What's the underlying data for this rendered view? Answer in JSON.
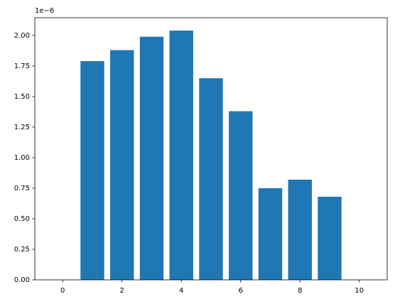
{
  "chart_data": {
    "type": "bar",
    "x": [
      0,
      1,
      2,
      3,
      4,
      5,
      6,
      7,
      8,
      9,
      10
    ],
    "values": [
      0,
      1.79,
      1.88,
      1.99,
      2.04,
      1.65,
      1.38,
      0.75,
      0.82,
      0.68,
      0
    ],
    "bar_width": 0.8,
    "color": "#1f77b4",
    "xlim": [
      -0.94,
      10.94
    ],
    "xticks": [
      0,
      2,
      4,
      6,
      8,
      10
    ],
    "ylim": [
      0,
      2.145
    ],
    "y_offset_label": "1e−6",
    "yticks": [
      {
        "value": 0,
        "label": "0.00"
      },
      {
        "value": 0.25,
        "label": "0.25"
      },
      {
        "value": 0.5,
        "label": "0.50"
      },
      {
        "value": 0.75,
        "label": "0.75"
      },
      {
        "value": 1,
        "label": "1.00"
      },
      {
        "value": 1.25,
        "label": "1.25"
      },
      {
        "value": 1.5,
        "label": "1.50"
      },
      {
        "value": 1.75,
        "label": "1.75"
      },
      {
        "value": 2,
        "label": "2.00"
      }
    ],
    "grid": false
  }
}
